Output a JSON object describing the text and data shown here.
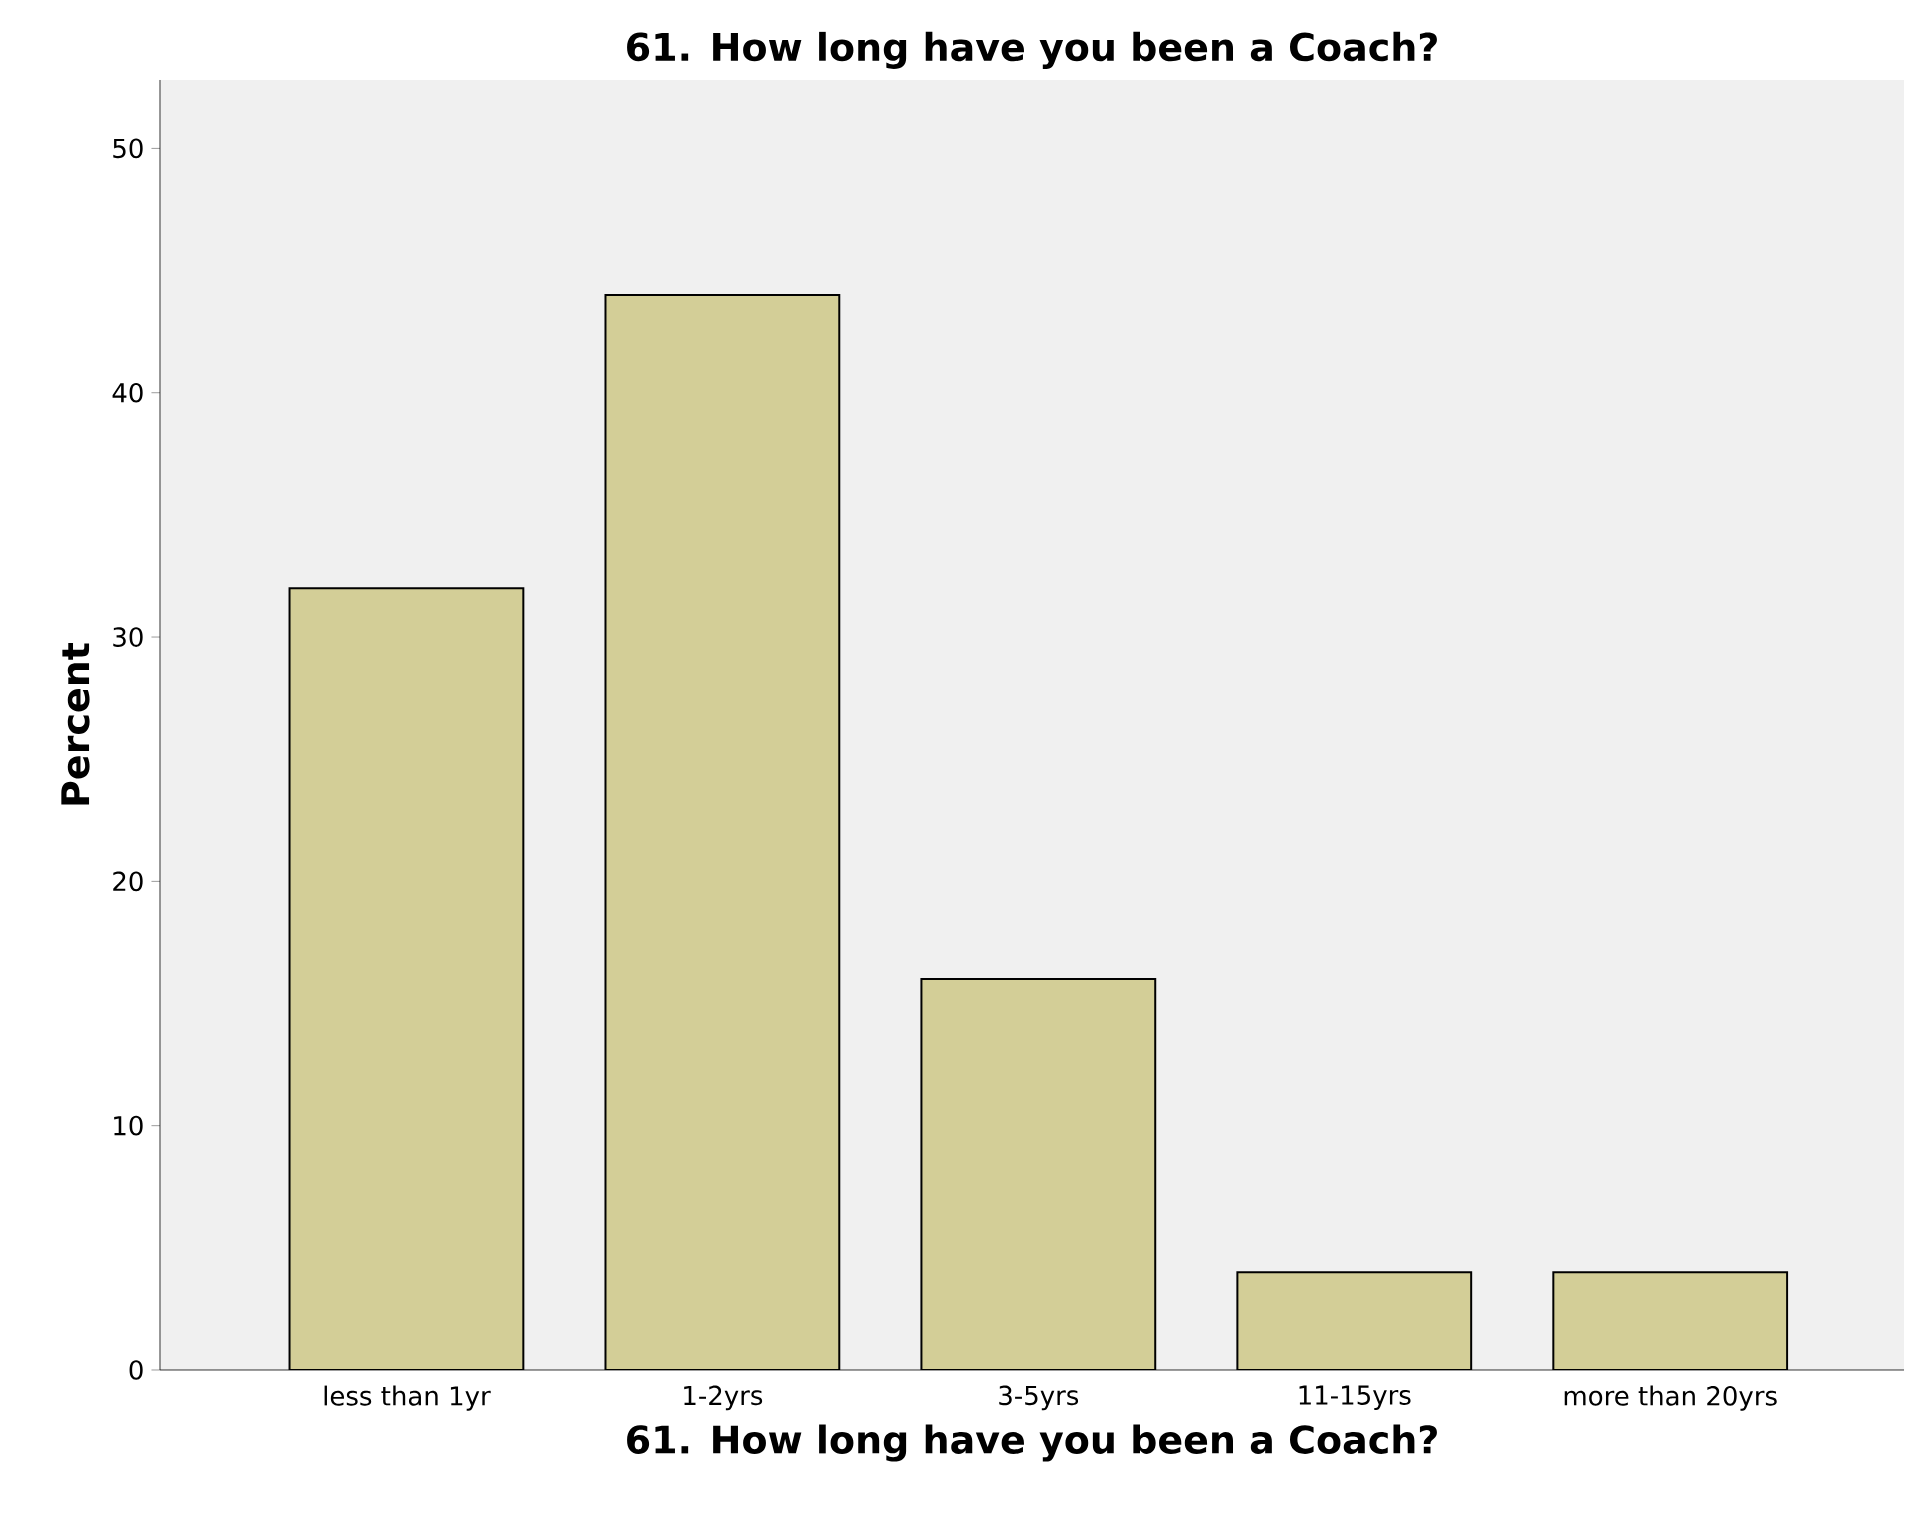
{
  "chart_data": {
    "type": "bar",
    "title": "61. How long have you been a Coach?",
    "xlabel": "61. How long have you been a Coach?",
    "ylabel": "Percent",
    "categories": [
      "less than 1yr",
      "1-2yrs",
      "3-5yrs",
      "11-15yrs",
      "more than 20yrs"
    ],
    "values": [
      32,
      44,
      16,
      4,
      4
    ],
    "color": "#d3ce97",
    "ylim": [
      0,
      52.8
    ],
    "yticks": [
      0,
      10,
      20,
      30,
      40,
      50
    ],
    "grid": false
  }
}
